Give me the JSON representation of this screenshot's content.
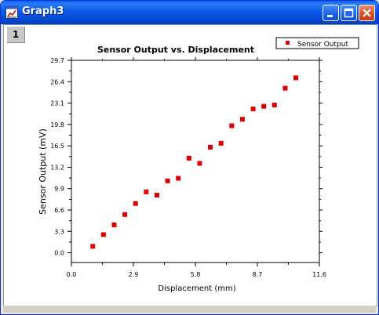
{
  "window": {
    "title": "Graph3",
    "layer_label": "1"
  },
  "colors": {
    "marker": "#E00000",
    "axis": "#000000",
    "plot_bg": "#FFFFFF"
  },
  "icons": {
    "app": "graph-window-icon",
    "minimize": "minimize-icon",
    "maximize": "maximize-icon",
    "close": "close-icon"
  },
  "chart_data": {
    "type": "scatter",
    "title": "Sensor Output vs. Displacement",
    "xlabel": "Displacement (mm)",
    "ylabel": "Sensor Output (mV)",
    "xlim": [
      0,
      11.6
    ],
    "ylim": [
      -1.5,
      29.7
    ],
    "x_ticks": [
      "0.0",
      "2.9",
      "5.8",
      "8.7",
      "11.6"
    ],
    "x_tick_values": [
      0,
      2.9,
      5.8,
      8.7,
      11.6
    ],
    "y_ticks": [
      "0.0",
      "3.3",
      "6.6",
      "9.9",
      "13.2",
      "16.5",
      "19.8",
      "23.1",
      "26.4",
      "29.7"
    ],
    "y_tick_values": [
      0,
      3.3,
      6.6,
      9.9,
      13.2,
      16.5,
      19.8,
      23.1,
      26.4,
      29.7
    ],
    "legend": {
      "position": "top-right",
      "entries": [
        "Sensor Output"
      ]
    },
    "grid": false,
    "series": [
      {
        "name": "Sensor Output",
        "x": [
          1.0,
          1.5,
          2.0,
          2.5,
          3.0,
          3.5,
          4.0,
          4.5,
          5.0,
          5.5,
          6.0,
          6.5,
          7.0,
          7.5,
          8.0,
          8.5,
          9.0,
          9.5,
          10.0,
          10.5
        ],
        "y": [
          1.0,
          2.8,
          4.3,
          5.9,
          7.6,
          9.4,
          8.9,
          11.1,
          11.5,
          14.6,
          13.8,
          16.3,
          16.9,
          19.6,
          20.6,
          22.2,
          22.6,
          22.8,
          25.4,
          27.0
        ]
      }
    ]
  }
}
